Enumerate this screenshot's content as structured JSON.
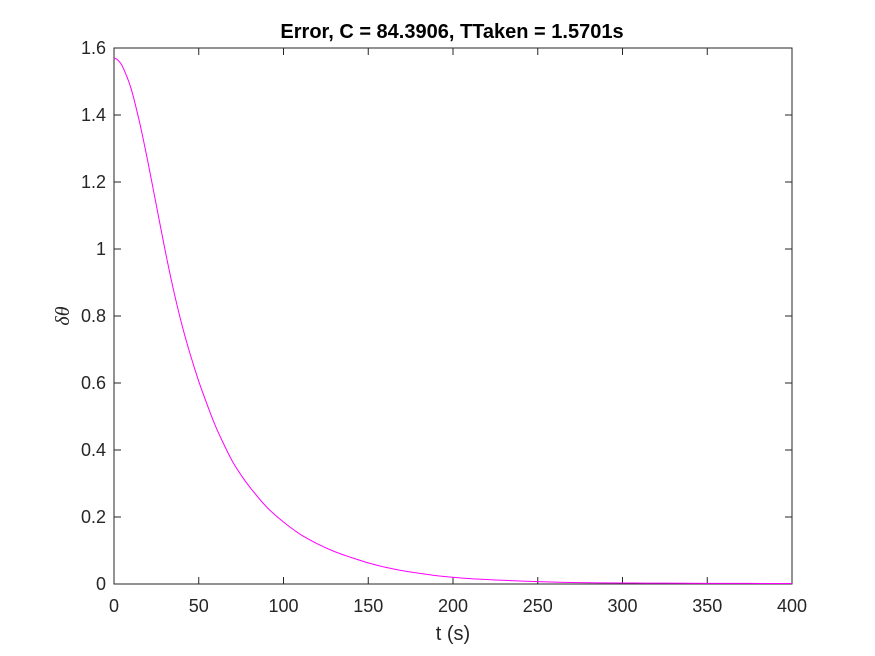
{
  "chart_data": {
    "type": "line",
    "title": "Error, C = 84.3906, TTaken = 1.5701s",
    "xlabel": "t (s)",
    "ylabel": "δθ",
    "xlim": [
      0,
      400
    ],
    "ylim": [
      0,
      1.6
    ],
    "xticks": [
      0,
      50,
      100,
      150,
      200,
      250,
      300,
      350,
      400
    ],
    "yticks": [
      0,
      0.2,
      0.4,
      0.6,
      0.8,
      1,
      1.2,
      1.4,
      1.6
    ],
    "xtick_labels": [
      "0",
      "50",
      "100",
      "150",
      "200",
      "250",
      "300",
      "350",
      "400"
    ],
    "ytick_labels": [
      "0",
      "0.2",
      "0.4",
      "0.6",
      "0.8",
      "1",
      "1.2",
      "1.4",
      "1.6"
    ],
    "grid": false,
    "series": [
      {
        "color": "#ff00ff",
        "x": [
          0,
          2,
          5,
          10,
          15,
          20,
          25,
          30,
          35,
          40,
          45,
          50,
          55,
          60,
          65,
          70,
          75,
          80,
          90,
          100,
          110,
          120,
          130,
          140,
          150,
          160,
          170,
          180,
          190,
          200,
          210,
          225,
          250,
          275,
          300,
          325,
          350,
          375,
          400
        ],
        "y": [
          1.57,
          1.565,
          1.545,
          1.48,
          1.38,
          1.26,
          1.13,
          1.0,
          0.88,
          0.775,
          0.685,
          0.605,
          0.535,
          0.47,
          0.415,
          0.365,
          0.325,
          0.29,
          0.23,
          0.185,
          0.148,
          0.12,
          0.097,
          0.079,
          0.063,
          0.05,
          0.04,
          0.032,
          0.025,
          0.02,
          0.016,
          0.012,
          0.007,
          0.004,
          0.003,
          0.0025,
          0.002,
          0.0017,
          0.0015
        ]
      }
    ]
  }
}
